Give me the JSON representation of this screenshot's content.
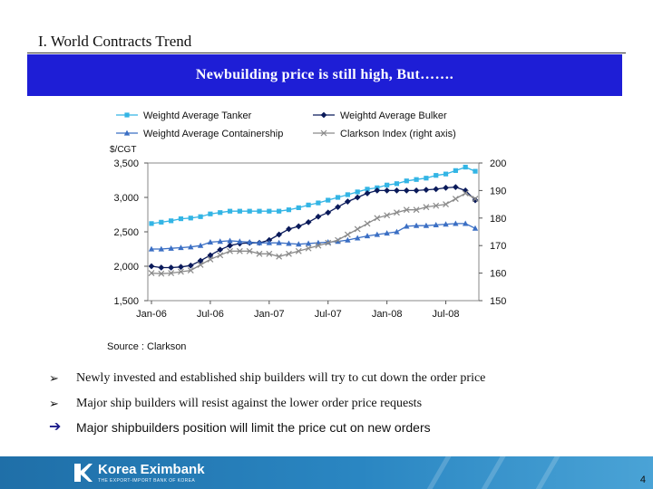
{
  "slide": {
    "title": "I. World Contracts Trend",
    "banner": "Newbuilding price is still high, But……."
  },
  "bullets": [
    "Newly invested and established ship builders will try to cut down the order price",
    "Major ship builders will resist against the lower order price requests"
  ],
  "conclusion": "Major shipbuilders position will limit the price cut on new orders",
  "footer": {
    "logo_text": "Korea Eximbank",
    "logo_subtext": "THE EXPORT-IMPORT BANK OF KOREA",
    "page_number": "4",
    "color": "#2a86c2"
  },
  "chart_data": {
    "type": "line",
    "title": "",
    "xlabel": "",
    "ylabel": "$/CGT",
    "source": "Source : Clarkson",
    "x": [
      "Jan-06",
      "Feb-06",
      "Mar-06",
      "Apr-06",
      "May-06",
      "Jun-06",
      "Jul-06",
      "Aug-06",
      "Sep-06",
      "Oct-06",
      "Nov-06",
      "Dec-06",
      "Jan-07",
      "Feb-07",
      "Mar-07",
      "Apr-07",
      "May-07",
      "Jun-07",
      "Jul-07",
      "Aug-07",
      "Sep-07",
      "Oct-07",
      "Nov-07",
      "Dec-07",
      "Jan-08",
      "Feb-08",
      "Mar-08",
      "Apr-08",
      "May-08",
      "Jun-08",
      "Jul-08",
      "Aug-08",
      "Sep-08",
      "Oct-08"
    ],
    "x_tick_labels": [
      "Jan-06",
      "Jul-06",
      "Jan-07",
      "Jul-07",
      "Jan-08",
      "Jul-08"
    ],
    "x_tick_indices": [
      0,
      6,
      12,
      18,
      24,
      30
    ],
    "y_left": {
      "min": 1500,
      "max": 3500,
      "ticks": [
        1500,
        2000,
        2500,
        3000,
        3500
      ],
      "tick_labels": [
        "1,500",
        "2,000",
        "2,500",
        "3,000",
        "3,500"
      ]
    },
    "y_right": {
      "min": 150,
      "max": 200,
      "ticks": [
        150,
        160,
        170,
        180,
        190,
        200
      ],
      "tick_labels": [
        "150",
        "160",
        "170",
        "180",
        "190",
        "200"
      ]
    },
    "series": [
      {
        "name": "Weightd Average Tanker",
        "axis": "left",
        "color": "#33b5e5",
        "marker": "square",
        "values": [
          2620,
          2640,
          2660,
          2690,
          2700,
          2720,
          2760,
          2780,
          2800,
          2800,
          2800,
          2800,
          2800,
          2800,
          2820,
          2850,
          2890,
          2920,
          2960,
          3000,
          3040,
          3080,
          3120,
          3140,
          3180,
          3200,
          3240,
          3260,
          3280,
          3320,
          3340,
          3390,
          3440,
          3380
        ]
      },
      {
        "name": "Weightd Average Bulker",
        "axis": "left",
        "color": "#0a1a5a",
        "marker": "diamond",
        "values": [
          2000,
          1980,
          1980,
          1990,
          2010,
          2080,
          2160,
          2240,
          2300,
          2330,
          2340,
          2340,
          2380,
          2460,
          2540,
          2580,
          2640,
          2720,
          2780,
          2860,
          2940,
          3000,
          3060,
          3100,
          3100,
          3100,
          3100,
          3100,
          3110,
          3120,
          3140,
          3150,
          3100,
          2960
        ]
      },
      {
        "name": "Weightd Average Containership",
        "axis": "left",
        "color": "#3b6fc4",
        "marker": "triangle",
        "values": [
          2250,
          2250,
          2260,
          2270,
          2280,
          2300,
          2350,
          2360,
          2370,
          2360,
          2350,
          2340,
          2340,
          2340,
          2330,
          2320,
          2330,
          2340,
          2350,
          2360,
          2380,
          2410,
          2440,
          2460,
          2480,
          2500,
          2580,
          2590,
          2590,
          2600,
          2610,
          2620,
          2620,
          2550
        ]
      },
      {
        "name": "Clarkson Index (right axis)",
        "axis": "right",
        "color": "#8a8a8a",
        "marker": "cross",
        "values": [
          160,
          159.8,
          160,
          160.5,
          161,
          163,
          165,
          166.5,
          168,
          168,
          168,
          167,
          167,
          166,
          167,
          168,
          169,
          170,
          171,
          172,
          174,
          176,
          178,
          180,
          181,
          182,
          183,
          183,
          184,
          184.5,
          185,
          187,
          189,
          187
        ]
      }
    ],
    "legend_placement": "top",
    "grid": false
  }
}
